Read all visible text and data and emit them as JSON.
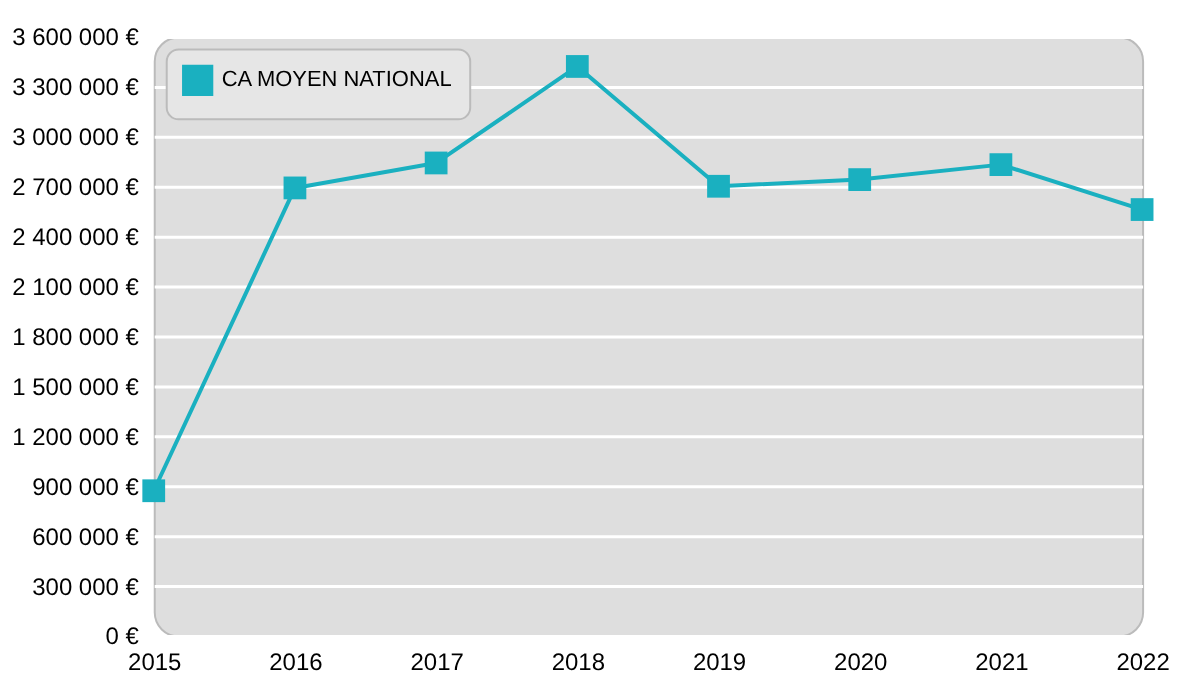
{
  "chart_data": {
    "type": "line",
    "x": [
      2015,
      2016,
      2017,
      2018,
      2019,
      2020,
      2021,
      2022
    ],
    "series": [
      {
        "name": "CA MOYEN NATIONAL",
        "color": "#1ab0c0",
        "values": [
          870000,
          2690000,
          2840000,
          3420000,
          2700000,
          2740000,
          2830000,
          2560000
        ]
      }
    ],
    "xlim": [
      2015,
      2022
    ],
    "xticks": [
      2015,
      2016,
      2017,
      2018,
      2019,
      2020,
      2021,
      2022
    ],
    "ylim": [
      0,
      3600000
    ],
    "yticks": [
      {
        "value": 0,
        "label": "0 €"
      },
      {
        "value": 300000,
        "label": "300 000 €"
      },
      {
        "value": 600000,
        "label": "600 000 €"
      },
      {
        "value": 900000,
        "label": "900 000 €"
      },
      {
        "value": 1200000,
        "label": "1 200 000 €"
      },
      {
        "value": 1500000,
        "label": "1 500 000 €"
      },
      {
        "value": 1800000,
        "label": "1 800 000 €"
      },
      {
        "value": 2100000,
        "label": "2 100 000 €"
      },
      {
        "value": 2400000,
        "label": "2 400 000 €"
      },
      {
        "value": 2700000,
        "label": "2 700 000 €"
      },
      {
        "value": 3000000,
        "label": "3 000 000 €"
      },
      {
        "value": 3300000,
        "label": "3 300 000 €"
      },
      {
        "value": 3600000,
        "label": "3 600 000 €"
      }
    ],
    "grid": "y",
    "legend": "top left",
    "marker": "square",
    "line_style": "solid"
  }
}
